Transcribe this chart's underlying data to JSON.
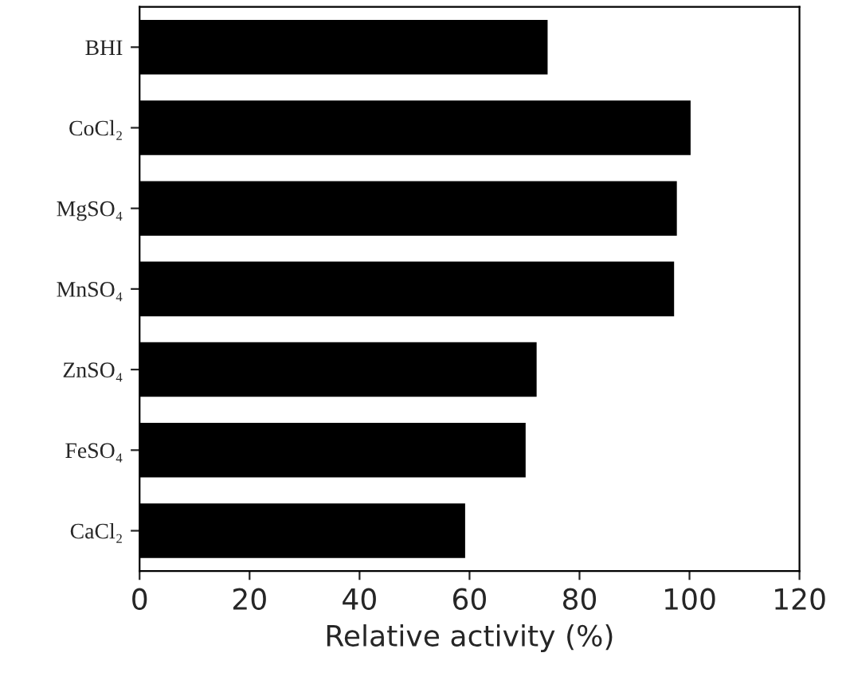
{
  "chart_data": {
    "type": "bar",
    "orientation": "horizontal",
    "xlabel": "Relative activity (%)",
    "categories": [
      "BHI",
      "CoCl₂",
      "MgSO₄",
      "MnSO₄",
      "ZnSO₄",
      "FeSO₄",
      "CaCl₂"
    ],
    "values": [
      74,
      100,
      97.5,
      97,
      72,
      70,
      59
    ],
    "color": "#000000",
    "xlim": [
      0,
      120
    ],
    "xticks": [
      0,
      20,
      40,
      60,
      80,
      100,
      120
    ],
    "grid": false
  }
}
